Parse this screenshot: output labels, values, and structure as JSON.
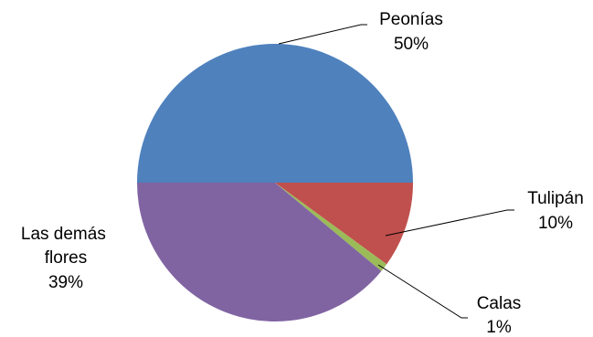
{
  "chart_data": {
    "type": "pie",
    "title": "",
    "slices": [
      {
        "label": "Peonías",
        "value": 50,
        "value_label": "50%",
        "color": "#4f81bd"
      },
      {
        "label": "Tulipán",
        "value": 10,
        "value_label": "10%",
        "color": "#c0504d"
      },
      {
        "label": "Calas",
        "value": 1,
        "value_label": "1%",
        "color": "#9bbb59"
      },
      {
        "label": "Las demás flores",
        "value": 39,
        "value_label": "39%",
        "color": "#8064a2"
      }
    ],
    "legend": "none",
    "data_labels": "category-and-percent-outside-with-leader-lines"
  }
}
